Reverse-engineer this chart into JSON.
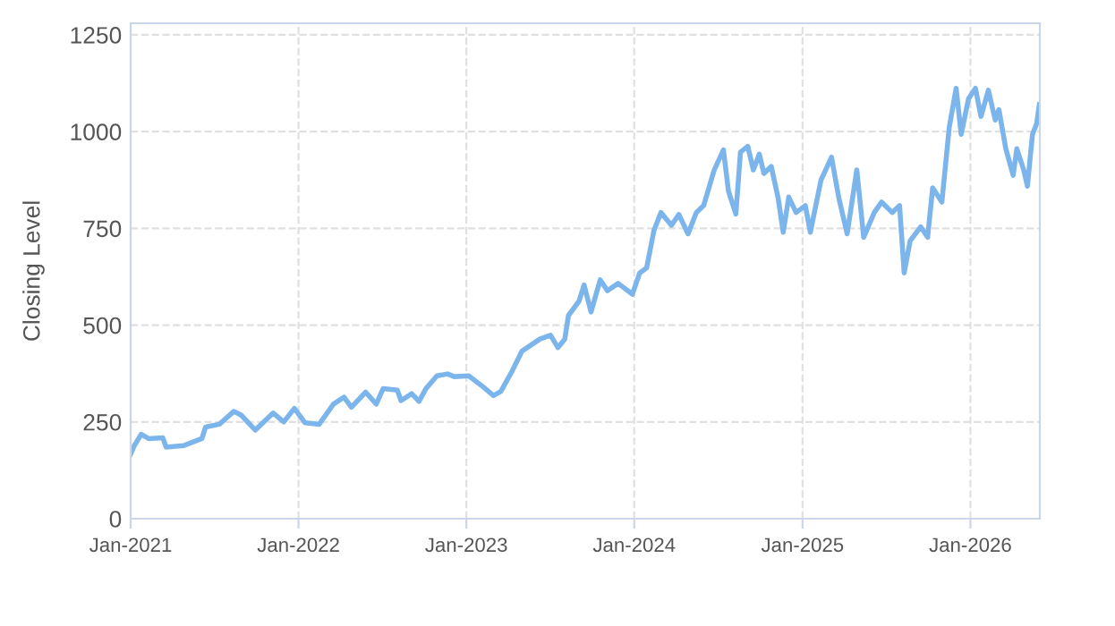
{
  "chart_data": {
    "type": "line",
    "ylabel": "Closing Level",
    "xlim": [
      "2021-01-01",
      "2026-06-01"
    ],
    "ylim": [
      0,
      1280
    ],
    "xticks": [
      {
        "value": "2021-01-01",
        "label": "Jan-2021"
      },
      {
        "value": "2022-01-01",
        "label": "Jan-2022"
      },
      {
        "value": "2023-01-01",
        "label": "Jan-2023"
      },
      {
        "value": "2024-01-01",
        "label": "Jan-2024"
      },
      {
        "value": "2025-01-01",
        "label": "Jan-2025"
      },
      {
        "value": "2026-01-01",
        "label": "Jan-2026"
      }
    ],
    "yticks": [
      0,
      250,
      500,
      750,
      1000,
      1250
    ],
    "grid": true,
    "marker": "none",
    "line_style": "solid",
    "series": [
      {
        "color": "#7cb5ec",
        "x": [
          "2021-01-01",
          "2021-01-09",
          "2021-01-24",
          "2021-02-09",
          "2021-03-12",
          "2021-03-19",
          "2021-04-27",
          "2021-06-05",
          "2021-06-13",
          "2021-07-13",
          "2021-08-13",
          "2021-08-29",
          "2021-09-29",
          "2021-11-07",
          "2021-11-30",
          "2021-12-23",
          "2022-01-15",
          "2022-02-15",
          "2022-03-18",
          "2022-04-10",
          "2022-04-26",
          "2022-05-27",
          "2022-06-19",
          "2022-07-04",
          "2022-08-04",
          "2022-08-12",
          "2022-09-04",
          "2022-09-20",
          "2022-10-05",
          "2022-10-29",
          "2022-11-21",
          "2022-12-06",
          "2023-01-06",
          "2023-02-06",
          "2023-03-01",
          "2023-03-17",
          "2023-04-09",
          "2023-05-02",
          "2023-06-10",
          "2023-07-03",
          "2023-07-19",
          "2023-08-03",
          "2023-08-11",
          "2023-09-03",
          "2023-09-14",
          "2023-09-29",
          "2023-10-19",
          "2023-11-04",
          "2023-11-27",
          "2023-12-28",
          "2024-01-13",
          "2024-01-28",
          "2024-02-13",
          "2024-02-28",
          "2024-03-22",
          "2024-04-07",
          "2024-04-27",
          "2024-05-15",
          "2024-05-31",
          "2024-06-23",
          "2024-07-13",
          "2024-07-24",
          "2024-08-09",
          "2024-08-19",
          "2024-09-04",
          "2024-09-16",
          "2024-09-29",
          "2024-10-09",
          "2024-10-25",
          "2024-11-09",
          "2024-11-20",
          "2024-12-02",
          "2024-12-18",
          "2025-01-07",
          "2025-01-18",
          "2025-02-10",
          "2025-03-05",
          "2025-03-21",
          "2025-04-08",
          "2025-04-29",
          "2025-05-14",
          "2025-06-06",
          "2025-06-22",
          "2025-07-15",
          "2025-07-31",
          "2025-08-10",
          "2025-08-23",
          "2025-09-15",
          "2025-09-30",
          "2025-10-11",
          "2025-10-31",
          "2025-11-16",
          "2025-12-01",
          "2025-12-12",
          "2025-12-28",
          "2026-01-12",
          "2026-01-24",
          "2026-02-09",
          "2026-02-24",
          "2026-03-04",
          "2026-03-19",
          "2026-04-04",
          "2026-04-12",
          "2026-04-27",
          "2026-05-05",
          "2026-05-16",
          "2026-05-25",
          "2026-05-31"
        ],
        "values": [
          167,
          189,
          218,
          207,
          209,
          185,
          189,
          207,
          237,
          244,
          277,
          268,
          229,
          273,
          250,
          285,
          248,
          244,
          296,
          314,
          288,
          327,
          296,
          336,
          332,
          305,
          323,
          303,
          336,
          369,
          374,
          367,
          369,
          341,
          318,
          329,
          378,
          433,
          464,
          474,
          442,
          464,
          525,
          562,
          604,
          534,
          617,
          589,
          608,
          580,
          635,
          648,
          745,
          791,
          758,
          786,
          736,
          791,
          809,
          901,
          953,
          846,
          787,
          947,
          962,
          901,
          942,
          892,
          910,
          828,
          740,
          831,
          791,
          809,
          740,
          874,
          934,
          828,
          736,
          901,
          727,
          791,
          818,
          791,
          809,
          635,
          718,
          754,
          727,
          855,
          818,
          1011,
          1112,
          993,
          1085,
          1112,
          1039,
          1107,
          1030,
          1057,
          956,
          887,
          956,
          901,
          859,
          993,
          1020,
          1070
        ]
      }
    ]
  }
}
